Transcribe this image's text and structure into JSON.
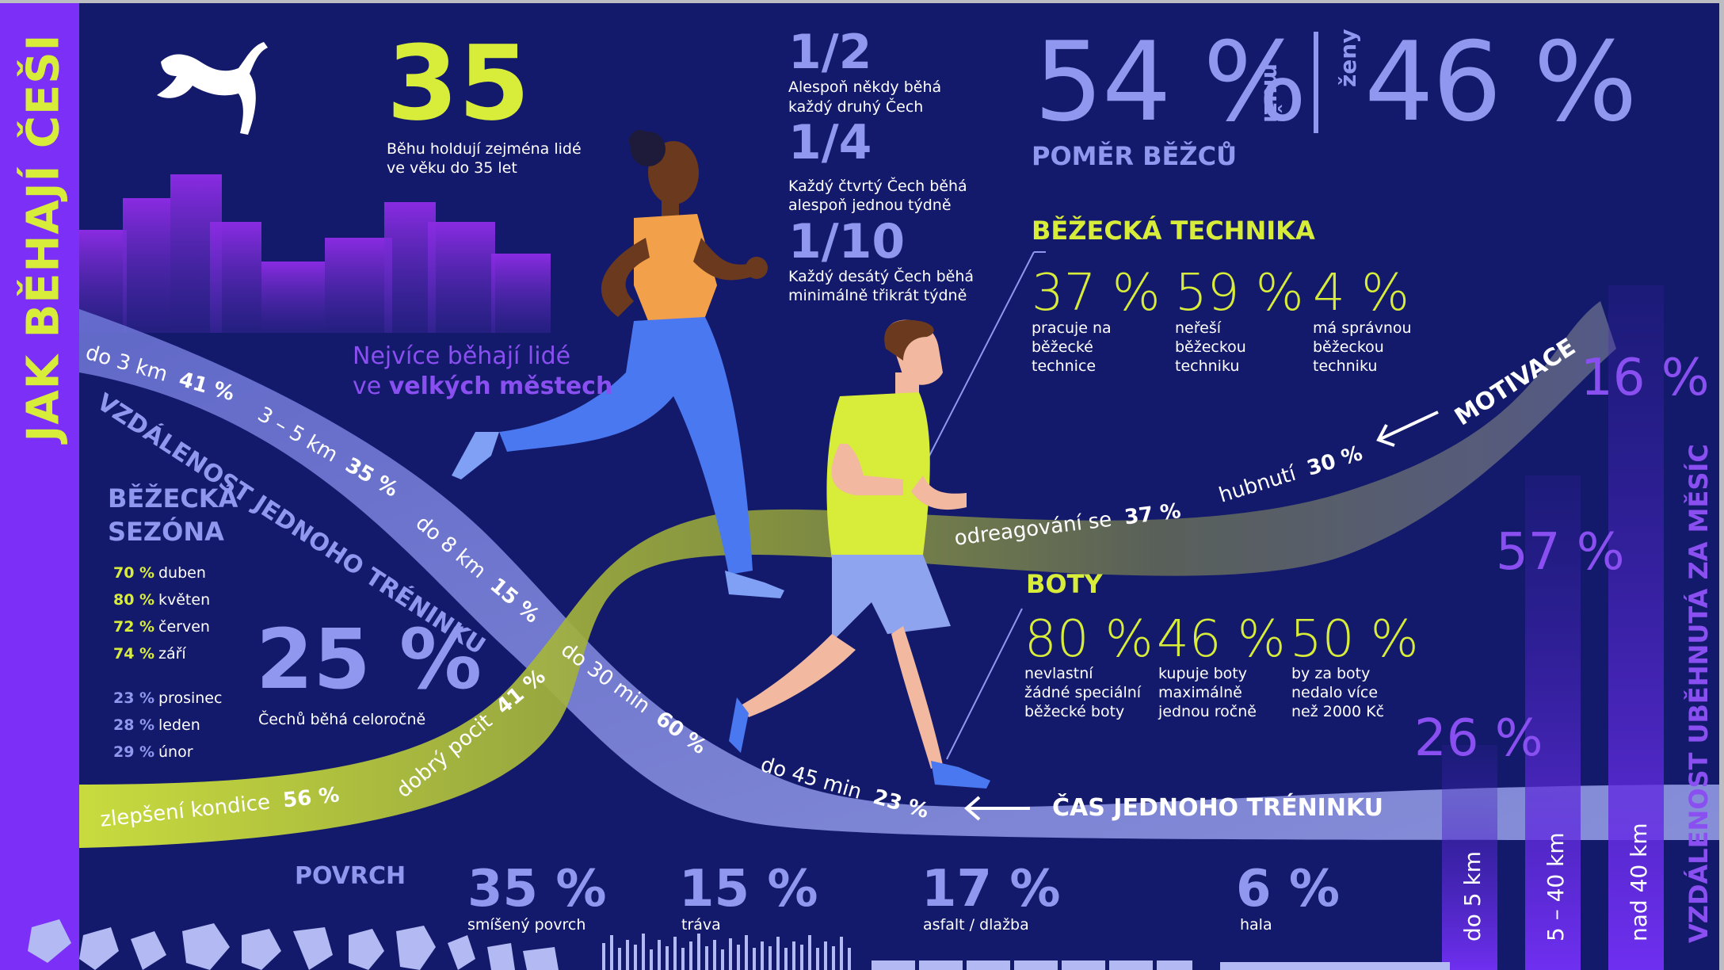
{
  "title": "JAK BĚHAJÍ ČEŠI",
  "age": {
    "number": "35",
    "line1": "Běhu holdují zejména lidé",
    "line2": "ve věku do 35 let"
  },
  "freq": [
    {
      "frac": "1/2",
      "line1": "Alespoň někdy běhá",
      "line2": "každý druhý Čech"
    },
    {
      "frac": "1/4",
      "line1": "Každý čtvrtý Čech běhá",
      "line2": "alespoň jednou týdně"
    },
    {
      "frac": "1/10",
      "line1": "Každý desátý Čech běhá",
      "line2": "minimálně třikrát týdně"
    }
  ],
  "ratio": {
    "men_pct": "54 %",
    "men_label": "muži",
    "women_label": "ženy",
    "women_pct": "46 %",
    "caption": "POMĚR BĚŽCŮ"
  },
  "cities": {
    "line1": "Nejvíce běhají lidé",
    "line2_prefix": "ve ",
    "line2_bold": "velkých městech"
  },
  "technique": {
    "heading": "BĚŽECKÁ TECHNIKA",
    "items": [
      {
        "pct": "37 %",
        "l1": "pracuje na",
        "l2": "běžecké",
        "l3": "technice"
      },
      {
        "pct": "59 %",
        "l1": "neřeší",
        "l2": "běžeckou",
        "l3": "techniku"
      },
      {
        "pct": "4 %",
        "l1": "má správnou",
        "l2": "běžeckou",
        "l3": "techniku"
      }
    ]
  },
  "shoes": {
    "heading": "BOTY",
    "items": [
      {
        "pct": "80 %",
        "l1": "nevlastní",
        "l2": "žádné speciální",
        "l3": "běžecké boty"
      },
      {
        "pct": "46 %",
        "l1": "kupuje boty",
        "l2": "maximálně",
        "l3": "jednou ročně"
      },
      {
        "pct": "50 %",
        "l1": "by za boty",
        "l2": "nedalo více",
        "l3": "než 2000 Kč"
      }
    ]
  },
  "season": {
    "heading1": "BĚŽECKÁ",
    "heading2": "SEZÓNA",
    "top": [
      {
        "pct": "70 %",
        "month": "duben"
      },
      {
        "pct": "80 %",
        "month": "květen"
      },
      {
        "pct": "72 %",
        "month": "červen"
      },
      {
        "pct": "74 %",
        "month": "září"
      }
    ],
    "bottom": [
      {
        "pct": "23 %",
        "month": "prosinec"
      },
      {
        "pct": "28 %",
        "month": "leden"
      },
      {
        "pct": "29 %",
        "month": "únor"
      }
    ],
    "year_round_pct": "25 %",
    "year_round_label": "Čechů běhá celoročně"
  },
  "distance_band": {
    "title": "VZDÁLENOST JEDNOHO TRÉNINKU",
    "items": [
      {
        "label": "do 3 km",
        "pct": "41 %"
      },
      {
        "label": "3 – 5 km",
        "pct": "35 %"
      },
      {
        "label": "do 8 km",
        "pct": "15 %"
      }
    ]
  },
  "time_band": {
    "title": "ČAS JEDNOHO TRÉNINKU",
    "items": [
      {
        "label": "do 30 min",
        "pct": "60 %"
      },
      {
        "label": "do 45 min",
        "pct": "23 %"
      }
    ]
  },
  "motivation_band": {
    "title": "MOTIVACE",
    "items": [
      {
        "label": "zlepšení kondice",
        "pct": "56 %"
      },
      {
        "label": "dobrý pocit",
        "pct": "41 %"
      },
      {
        "label": "odreagování se",
        "pct": "37 %"
      },
      {
        "label": "hubnutí",
        "pct": "30 %"
      }
    ]
  },
  "surface": {
    "heading": "POVRCH",
    "items": [
      {
        "pct": "35 %",
        "label": "smíšený povrch"
      },
      {
        "pct": "15 %",
        "label": "tráva"
      },
      {
        "pct": "17 %",
        "label": "asfalt / dlažba"
      },
      {
        "pct": "6 %",
        "label": "hala"
      }
    ]
  },
  "monthly": {
    "title": "VZDÁLENOST UBĚHNUTÁ ZA MĚSÍC",
    "bars": [
      {
        "label": "do 5 km",
        "pct": "26 %"
      },
      {
        "label": "5 – 40 km",
        "pct": "57 %"
      },
      {
        "label": "nad 40 km",
        "pct": "16 %"
      }
    ]
  },
  "colors": {
    "background": "#141a6b",
    "accent_yellow": "#d8ec3a",
    "lavender": "#8f98ee",
    "violet": "#7b2ff7"
  }
}
